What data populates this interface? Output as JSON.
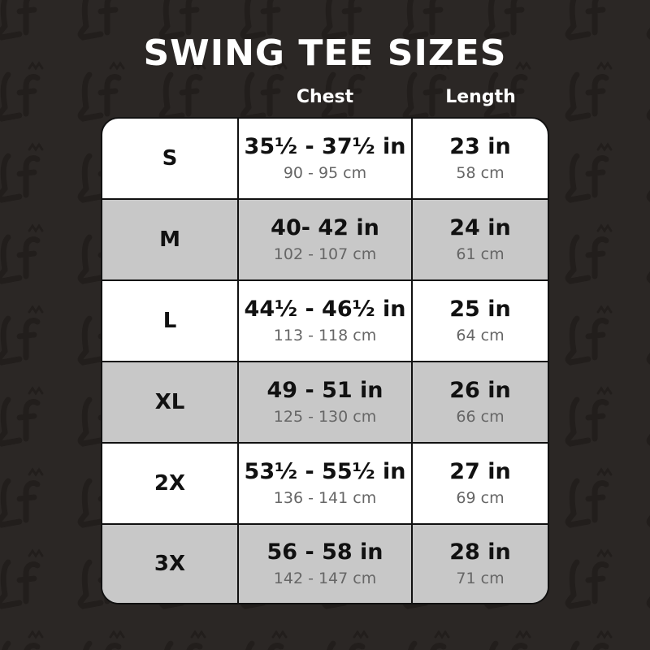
{
  "title": "SWING TEE SIZES",
  "columns": {
    "chest": "Chest",
    "length": "Length"
  },
  "watermark_logo": "Lf",
  "rows": [
    {
      "size": "S",
      "chest_in": "35½ - 37½ in",
      "chest_cm": "90 - 95 cm",
      "length_in": "23 in",
      "length_cm": "58 cm"
    },
    {
      "size": "M",
      "chest_in": "40- 42 in",
      "chest_cm": "102 - 107 cm",
      "length_in": "24 in",
      "length_cm": "61 cm"
    },
    {
      "size": "L",
      "chest_in": "44½ - 46½  in",
      "chest_cm": "113 - 118 cm",
      "length_in": "25 in",
      "length_cm": "64 cm"
    },
    {
      "size": "XL",
      "chest_in": "49 - 51 in",
      "chest_cm": "125 - 130 cm",
      "length_in": "26 in",
      "length_cm": "66 cm"
    },
    {
      "size": "2X",
      "chest_in": "53½ - 55½ in",
      "chest_cm": "136 - 141 cm",
      "length_in": "27 in",
      "length_cm": "69 cm"
    },
    {
      "size": "3X",
      "chest_in": "56 - 58 in",
      "chest_cm": "142 - 147 cm",
      "length_in": "28 in",
      "length_cm": "71 cm"
    }
  ],
  "colors": {
    "background": "#2b2725",
    "row_alt": "#c8c8c8",
    "row": "#ffffff"
  }
}
